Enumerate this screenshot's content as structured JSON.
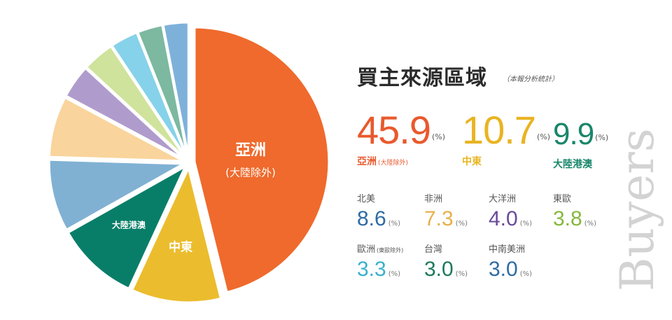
{
  "title": "買主來源區域",
  "subtitle": "（本報分析統計）",
  "watermark": "Buyers",
  "percent_unit": "(%)",
  "highlights": [
    {
      "value": "45.9",
      "label": "亞洲",
      "sublabel": "(大陸除外)",
      "color": "#e9592d"
    },
    {
      "value": "10.7",
      "label": "中東",
      "sublabel": "",
      "color": "#e8b422"
    },
    {
      "value": "9.9",
      "label": "大陸港澳",
      "sublabel": "",
      "color": "#19866a"
    }
  ],
  "others": [
    {
      "label": "北美",
      "sublabel": "",
      "value": "8.6",
      "color": "#2e6ba3"
    },
    {
      "label": "非洲",
      "sublabel": "",
      "value": "7.3",
      "color": "#e6b04a"
    },
    {
      "label": "大洋洲",
      "sublabel": "",
      "value": "4.0",
      "color": "#6a4a9a"
    },
    {
      "label": "東歐",
      "sublabel": "",
      "value": "3.8",
      "color": "#86b83c"
    },
    {
      "label": "歐洲",
      "sublabel": "(東歐除外)",
      "value": "3.3",
      "color": "#3ab0cf"
    },
    {
      "label": "台灣",
      "sublabel": "",
      "value": "3.0",
      "color": "#1d7a5e"
    },
    {
      "label": "中南美洲",
      "sublabel": "",
      "value": "3.0",
      "color": "#2e6ba3"
    }
  ],
  "chart_data": {
    "type": "pie",
    "title": "買主來源區域",
    "subtitle": "（本報分析統計）",
    "unit": "%",
    "slices": [
      {
        "name": "亞洲(大陸除外)",
        "value": 45.9,
        "color": "#ef6a2c",
        "label": "亞洲",
        "sublabel": "(大陸除外)"
      },
      {
        "name": "中東",
        "value": 10.7,
        "color": "#ebbd2e",
        "label": "中東",
        "sublabel": ""
      },
      {
        "name": "大陸港澳",
        "value": 9.9,
        "color": "#087e68",
        "label": "大陸港澳",
        "sublabel": ""
      },
      {
        "name": "北美",
        "value": 8.6,
        "color": "#80b1d3",
        "label": "",
        "sublabel": ""
      },
      {
        "name": "非洲",
        "value": 7.3,
        "color": "#f9d49c",
        "label": "",
        "sublabel": ""
      },
      {
        "name": "大洋洲",
        "value": 4.0,
        "color": "#b09ccc",
        "label": "",
        "sublabel": ""
      },
      {
        "name": "東歐",
        "value": 3.8,
        "color": "#cfe39c",
        "label": "",
        "sublabel": ""
      },
      {
        "name": "歐洲(東歐除外)",
        "value": 3.3,
        "color": "#86d2ea",
        "label": "",
        "sublabel": ""
      },
      {
        "name": "台灣",
        "value": 3.0,
        "color": "#7cb9a0",
        "label": "",
        "sublabel": ""
      },
      {
        "name": "中南美洲",
        "value": 3.0,
        "color": "#7eb1da",
        "label": "",
        "sublabel": ""
      }
    ]
  }
}
